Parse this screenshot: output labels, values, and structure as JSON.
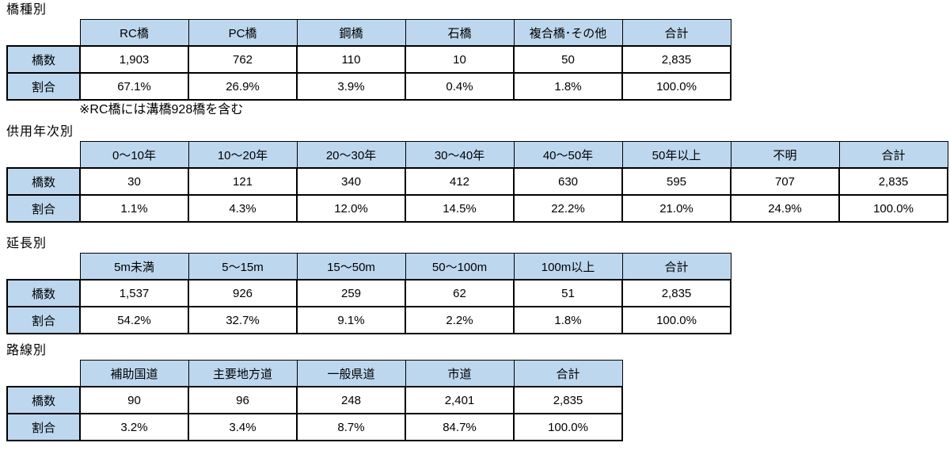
{
  "colors": {
    "header_fill": "#BDD7EE",
    "border": "#000000",
    "text": "#000000",
    "background": "#ffffff"
  },
  "row_labels": {
    "count": "橋数",
    "ratio": "割合"
  },
  "tables": [
    {
      "title": "橋種別",
      "columns": [
        "RC橋",
        "PC橋",
        "鋼橋",
        "石橋",
        "複合橋･その他",
        "合計"
      ],
      "counts": [
        "1,903",
        "762",
        "110",
        "10",
        "50",
        "2,835"
      ],
      "ratios": [
        "67.1%",
        "26.9%",
        "3.9%",
        "0.4%",
        "1.8%",
        "100.0%"
      ],
      "note": "※RC橋には溝橋928橋を含む"
    },
    {
      "title": "供用年次別",
      "columns": [
        "0〜10年",
        "10〜20年",
        "20〜30年",
        "30〜40年",
        "40〜50年",
        "50年以上",
        "不明",
        "合計"
      ],
      "counts": [
        "30",
        "121",
        "340",
        "412",
        "630",
        "595",
        "707",
        "2,835"
      ],
      "ratios": [
        "1.1%",
        "4.3%",
        "12.0%",
        "14.5%",
        "22.2%",
        "21.0%",
        "24.9%",
        "100.0%"
      ]
    },
    {
      "title": "延長別",
      "columns": [
        "5m未満",
        "5〜15m",
        "15〜50m",
        "50〜100m",
        "100m以上",
        "合計"
      ],
      "counts": [
        "1,537",
        "926",
        "259",
        "62",
        "51",
        "2,835"
      ],
      "ratios": [
        "54.2%",
        "32.7%",
        "9.1%",
        "2.2%",
        "1.8%",
        "100.0%"
      ]
    },
    {
      "title": "路線別",
      "columns": [
        "補助国道",
        "主要地方道",
        "一般県道",
        "市道",
        "合計"
      ],
      "counts": [
        "90",
        "96",
        "248",
        "2,401",
        "2,835"
      ],
      "ratios": [
        "3.2%",
        "3.4%",
        "8.7%",
        "84.7%",
        "100.0%"
      ]
    }
  ]
}
